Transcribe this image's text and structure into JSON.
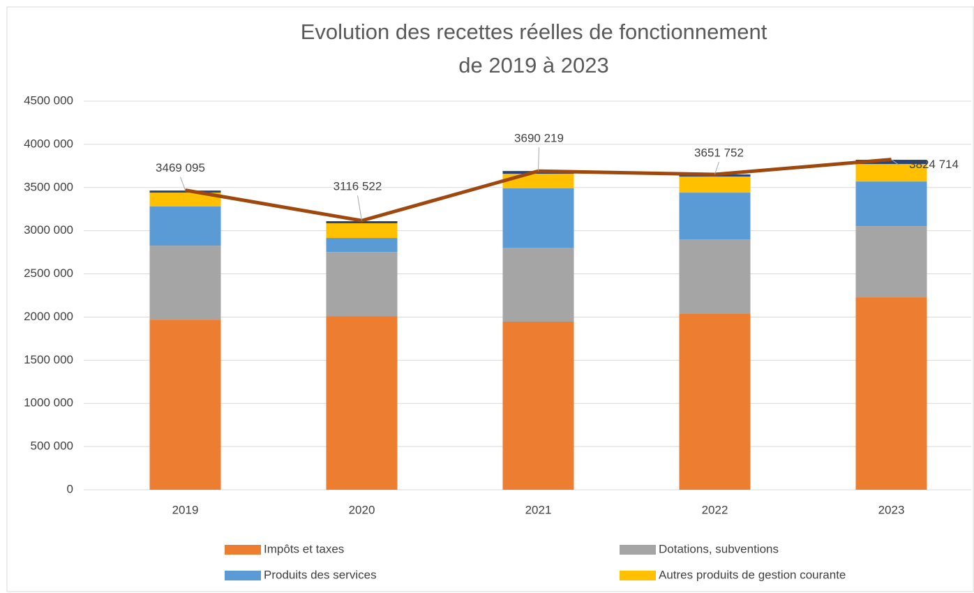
{
  "chart_data": {
    "type": "bar",
    "title": [
      "Evolution des recettes réelles de fonctionnement",
      "de 2019 à 2023"
    ],
    "categories": [
      "2019",
      "2020",
      "2021",
      "2022",
      "2023"
    ],
    "series": [
      {
        "name": "Impôts et taxes",
        "color": "#ed7d31",
        "values": [
          1970000,
          2011000,
          1947000,
          2036000,
          2229000
        ]
      },
      {
        "name": "Dotations, subventions",
        "color": "#a5a5a5",
        "values": [
          857000,
          743000,
          856000,
          864000,
          824000
        ]
      },
      {
        "name": "Produits des services",
        "color": "#5b9bd5",
        "values": [
          453000,
          162000,
          687000,
          541000,
          517000
        ]
      },
      {
        "name": "Autres produits de gestion courante",
        "color": "#ffc000",
        "values": [
          161000,
          170000,
          169000,
          186000,
          202000
        ]
      },
      {
        "color": "#264478",
        "values": [
          24000,
          24000,
          32000,
          24000,
          49000
        ]
      }
    ],
    "line": {
      "color": "#9e480e",
      "values": [
        3469095,
        3116522,
        3690219,
        3651752,
        3824714
      ],
      "value_labels": [
        "3469 095",
        "3116 522",
        "3690 219",
        "3651 752",
        "3824 714"
      ]
    },
    "ylim": [
      0,
      4500000
    ],
    "yticks": [
      0,
      {
        "value": 500000,
        "label": "500 000"
      },
      {
        "value": 1000000,
        "label": "1000 000"
      },
      {
        "value": 1500000,
        "label": "1500 000"
      },
      {
        "value": 2000000,
        "label": "2000 000"
      },
      {
        "value": 2500000,
        "label": "2500 000"
      },
      {
        "value": 3000000,
        "label": "3000 000"
      },
      {
        "value": 3500000,
        "label": "3500 000"
      },
      {
        "value": 4000000,
        "label": "4000 000"
      },
      {
        "value": 4500000,
        "label": "4500 000"
      }
    ],
    "grid": true,
    "legend": "bottom"
  }
}
